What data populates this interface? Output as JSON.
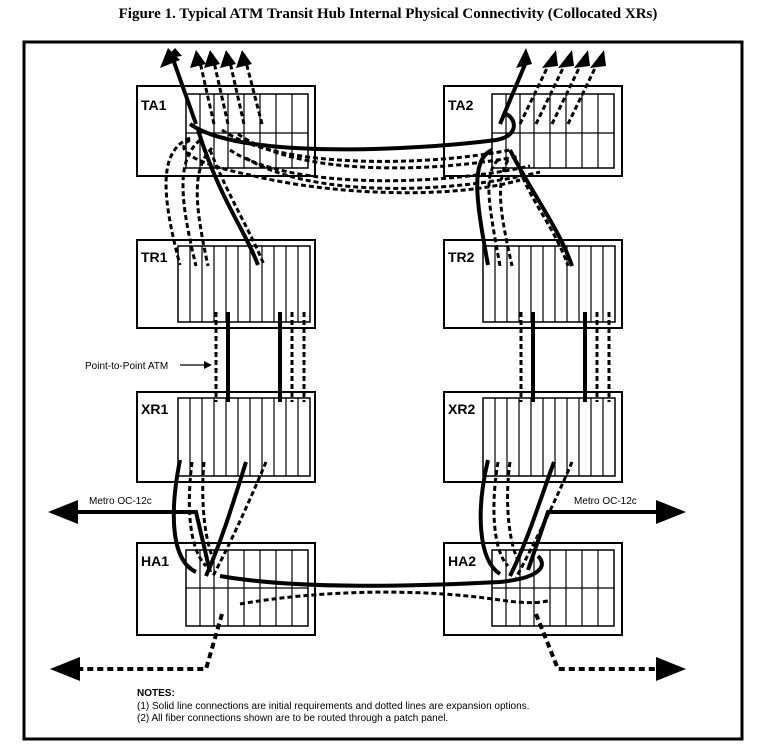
{
  "title": "Figure 1. Typical ATM Transit Hub Internal Physical Connectivity (Collocated XRs)",
  "boxes": {
    "ta1": "TA1",
    "ta2": "TA2",
    "tr1": "TR1",
    "tr2": "TR2",
    "xr1": "XR1",
    "xr2": "XR2",
    "ha1": "HA1",
    "ha2": "HA2"
  },
  "labels": {
    "point_to_point": "Point-to-Point ATM",
    "metro_left": "Metro OC-12c",
    "metro_right": "Metro OC-12c"
  },
  "notes": {
    "heading": "NOTES:",
    "items": [
      "(1) Solid line connections are initial requirements and dotted lines are expansion options.",
      "(2) All fiber connections shown are to be routed through a patch panel."
    ]
  }
}
